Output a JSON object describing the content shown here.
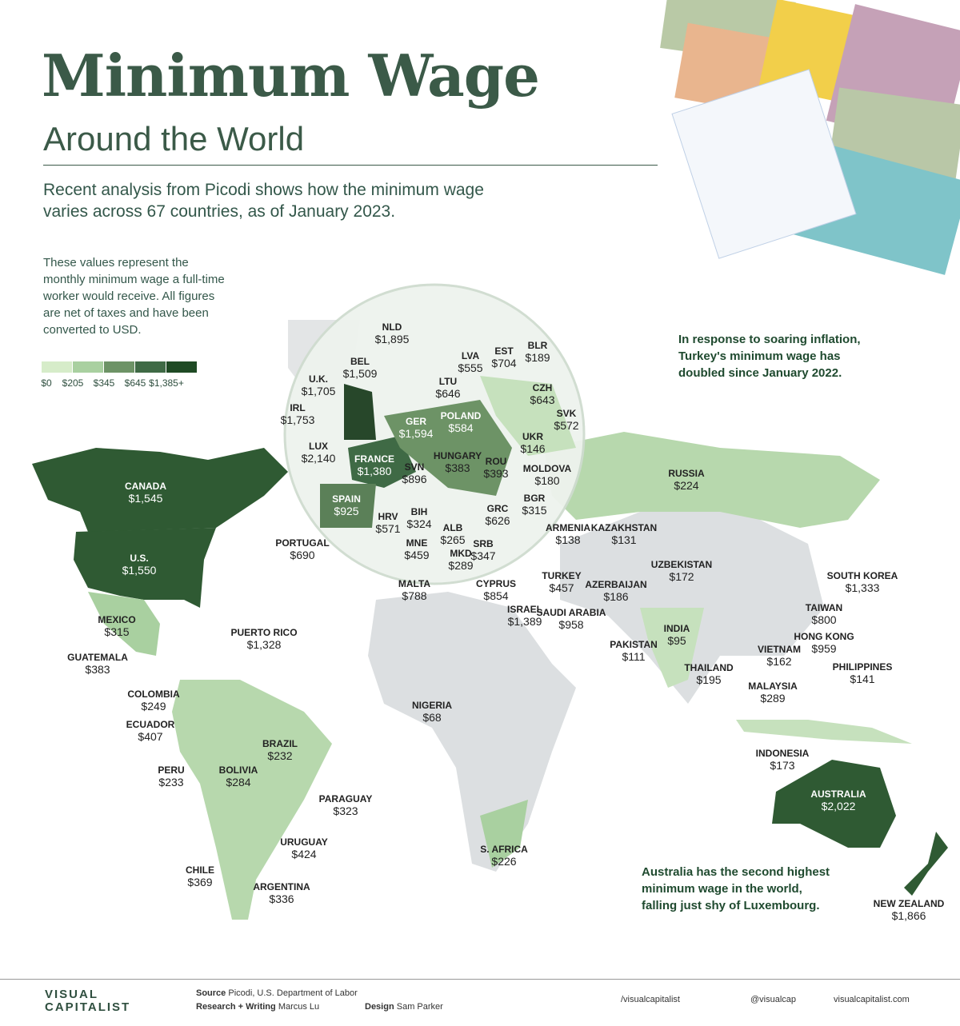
{
  "header": {
    "title": "Minimum Wage",
    "subtitle": "Around the World",
    "intro": "Recent analysis from Picodi shows how the minimum wage varies across 67 countries, as of January 2023."
  },
  "note": "These values represent the monthly minimum wage a full-time worker would receive. All figures are net of taxes and have been converted to USD.",
  "legend": {
    "labels": [
      "$0",
      "$205",
      "$345",
      "$645",
      "$1,385+"
    ]
  },
  "callouts": [
    "In response to soaring inflation, Turkey's minimum wage has doubled since January 2022.",
    "Australia has the second highest minimum wage in the world, falling just shy of Luxembourg."
  ],
  "countries": [
    {
      "name": "NLD",
      "wage": "$1,895"
    },
    {
      "name": "BEL",
      "wage": "$1,509"
    },
    {
      "name": "U.K.",
      "wage": "$1,705"
    },
    {
      "name": "IRL",
      "wage": "$1,753"
    },
    {
      "name": "LUX",
      "wage": "$2,140"
    },
    {
      "name": "GER",
      "wage": "$1,594"
    },
    {
      "name": "FRANCE",
      "wage": "$1,380"
    },
    {
      "name": "SPAIN",
      "wage": "$925"
    },
    {
      "name": "PORTUGAL",
      "wage": "$690"
    },
    {
      "name": "LVA",
      "wage": "$555"
    },
    {
      "name": "EST",
      "wage": "$704"
    },
    {
      "name": "BLR",
      "wage": "$189"
    },
    {
      "name": "LTU",
      "wage": "$646"
    },
    {
      "name": "CZH",
      "wage": "$643"
    },
    {
      "name": "POLAND",
      "wage": "$584"
    },
    {
      "name": "SVK",
      "wage": "$572"
    },
    {
      "name": "UKR",
      "wage": "$146"
    },
    {
      "name": "HUNGARY",
      "wage": "$383"
    },
    {
      "name": "ROU",
      "wage": "$393"
    },
    {
      "name": "MOLDOVA",
      "wage": "$180"
    },
    {
      "name": "SVN",
      "wage": "$896"
    },
    {
      "name": "BGR",
      "wage": "$315"
    },
    {
      "name": "GRC",
      "wage": "$626"
    },
    {
      "name": "HRV",
      "wage": "$571"
    },
    {
      "name": "BIH",
      "wage": "$324"
    },
    {
      "name": "ALB",
      "wage": "$265"
    },
    {
      "name": "MNE",
      "wage": "$459"
    },
    {
      "name": "MKD",
      "wage": "$289"
    },
    {
      "name": "SRB",
      "wage": "$347"
    },
    {
      "name": "MALTA",
      "wage": "$788"
    },
    {
      "name": "CYPRUS",
      "wage": "$854"
    },
    {
      "name": "TURKEY",
      "wage": "$457"
    },
    {
      "name": "ISRAEL",
      "wage": "$1,389"
    },
    {
      "name": "SAUDI ARABIA",
      "wage": "$958"
    },
    {
      "name": "ARMENIA",
      "wage": "$138"
    },
    {
      "name": "KAZAKHSTAN",
      "wage": "$131"
    },
    {
      "name": "UZBEKISTAN",
      "wage": "$172"
    },
    {
      "name": "AZERBAIJAN",
      "wage": "$186"
    },
    {
      "name": "RUSSIA",
      "wage": "$224"
    },
    {
      "name": "INDIA",
      "wage": "$95"
    },
    {
      "name": "PAKISTAN",
      "wage": "$111"
    },
    {
      "name": "SOUTH KOREA",
      "wage": "$1,333"
    },
    {
      "name": "TAIWAN",
      "wage": "$800"
    },
    {
      "name": "HONG KONG",
      "wage": "$959"
    },
    {
      "name": "VIETNAM",
      "wage": "$162"
    },
    {
      "name": "THAILAND",
      "wage": "$195"
    },
    {
      "name": "MALAYSIA",
      "wage": "$289"
    },
    {
      "name": "PHILIPPINES",
      "wage": "$141"
    },
    {
      "name": "INDONESIA",
      "wage": "$173"
    },
    {
      "name": "AUSTRALIA",
      "wage": "$2,022"
    },
    {
      "name": "NEW ZEALAND",
      "wage": "$1,866"
    },
    {
      "name": "S. AFRICA",
      "wage": "$226"
    },
    {
      "name": "NIGERIA",
      "wage": "$68"
    },
    {
      "name": "CANADA",
      "wage": "$1,545"
    },
    {
      "name": "U.S.",
      "wage": "$1,550"
    },
    {
      "name": "MEXICO",
      "wage": "$315"
    },
    {
      "name": "PUERTO RICO",
      "wage": "$1,328"
    },
    {
      "name": "GUATEMALA",
      "wage": "$383"
    },
    {
      "name": "COLOMBIA",
      "wage": "$249"
    },
    {
      "name": "ECUADOR",
      "wage": "$407"
    },
    {
      "name": "PERU",
      "wage": "$233"
    },
    {
      "name": "BOLIVIA",
      "wage": "$284"
    },
    {
      "name": "BRAZIL",
      "wage": "$232"
    },
    {
      "name": "PARAGUAY",
      "wage": "$323"
    },
    {
      "name": "URUGUAY",
      "wage": "$424"
    },
    {
      "name": "CHILE",
      "wage": "$369"
    },
    {
      "name": "ARGENTINA",
      "wage": "$336"
    }
  ],
  "footer": {
    "brand": "VISUAL CAPITALIST",
    "source_label": "Source",
    "source": "Picodi, U.S. Department of Labor",
    "research_label": "Research + Writing",
    "research": "Marcus Lu",
    "design_label": "Design",
    "design": "Sam Parker",
    "youtube": "/visualcapitalist",
    "social": "@visualcap",
    "site": "visualcapitalist.com"
  }
}
